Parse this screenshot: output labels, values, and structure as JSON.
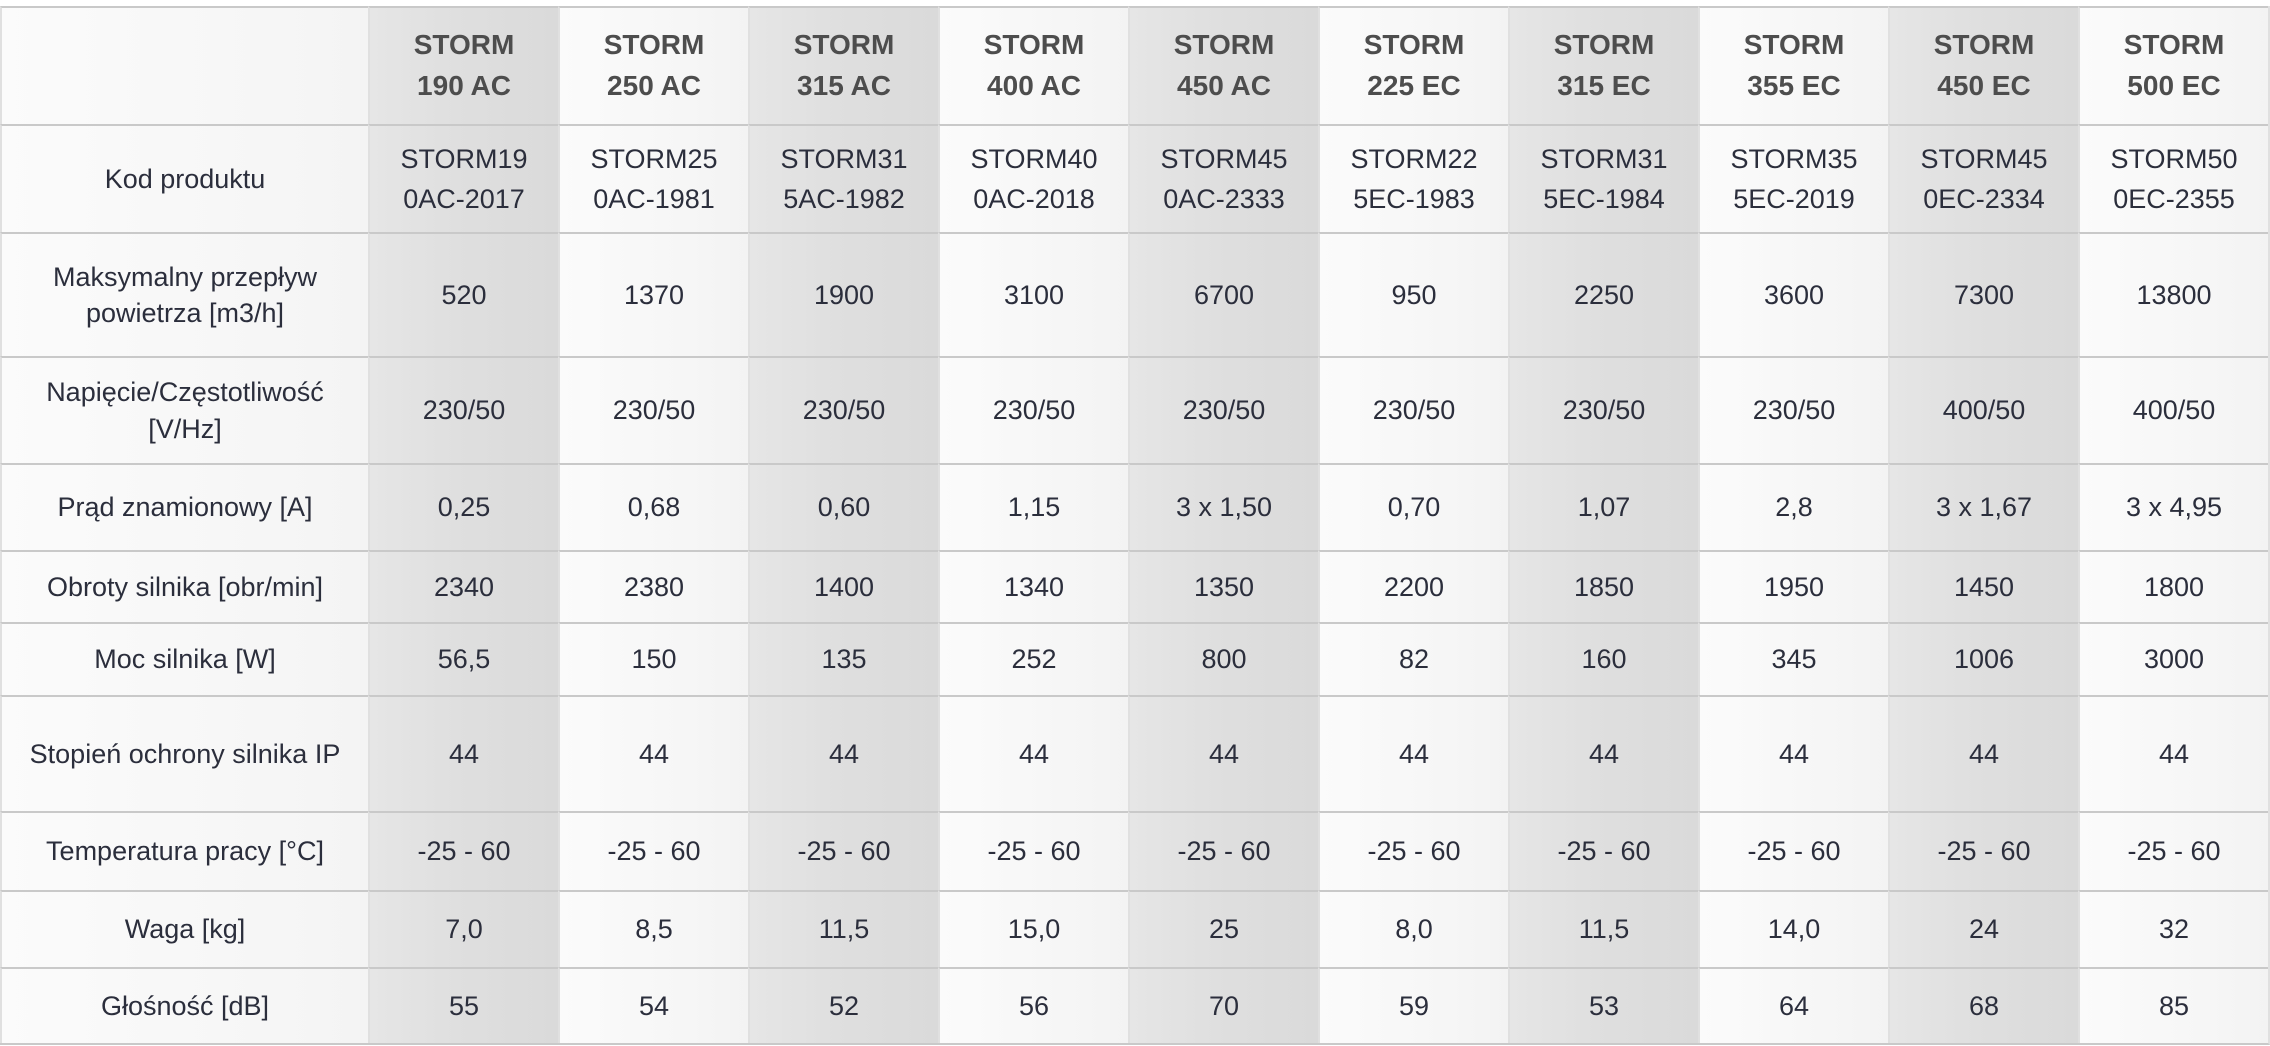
{
  "table": {
    "colors": {
      "stripe_gray": "#e0e0e0",
      "stripe_light": "#f8f8f8",
      "value_text": "#2b2e3c",
      "header_text": "#4d4d4d",
      "row_line": "#c9c9c9",
      "column_line": "#e0e0e0"
    },
    "corner_label": "",
    "products": [
      "STORM 190 AC",
      "STORM 250 AC",
      "STORM 315 AC",
      "STORM 400 AC",
      "STORM 450 AC",
      "STORM 225 EC",
      "STORM 315 EC",
      "STORM 355 EC",
      "STORM 450 EC",
      "STORM 500 EC"
    ],
    "rows": [
      {
        "id": "kod-produktu",
        "label": "Kod produktu",
        "values": [
          "STORM190AC-2017",
          "STORM250AC-1981",
          "STORM315AC-1982",
          "STORM400AC-2018",
          "STORM450AC-2333",
          "STORM225EC-1983",
          "STORM315EC-1984",
          "STORM355EC-2019",
          "STORM450EC-2334",
          "STORM500EC-2355"
        ]
      },
      {
        "id": "maksymalny-przeplyw-powietrza",
        "label": "Maksymalny przepływ powietrza [m3/h]",
        "values": [
          "520",
          "1370",
          "1900",
          "3100",
          "6700",
          "950",
          "2250",
          "3600",
          "7300",
          "13800"
        ]
      },
      {
        "id": "napiecie-czestotliwosc",
        "label": "Napięcie/Częstotliwość [V/Hz]",
        "values": [
          "230/50",
          "230/50",
          "230/50",
          "230/50",
          "230/50",
          "230/50",
          "230/50",
          "230/50",
          "400/50",
          "400/50"
        ]
      },
      {
        "id": "prad-znamionowy",
        "label": "Prąd znamionowy [A]",
        "values": [
          "0,25",
          "0,68",
          "0,60",
          "1,15",
          "3 x 1,50",
          "0,70",
          "1,07",
          "2,8",
          "3 x 1,67",
          "3 x 4,95"
        ]
      },
      {
        "id": "obroty-silnika",
        "label": "Obroty silnika [obr/min]",
        "values": [
          "2340",
          "2380",
          "1400",
          "1340",
          "1350",
          "2200",
          "1850",
          "1950",
          "1450",
          "1800"
        ]
      },
      {
        "id": "moc-silnika",
        "label": "Moc silnika [W]",
        "values": [
          "56,5",
          "150",
          "135",
          "252",
          "800",
          "82",
          "160",
          "345",
          "1006",
          "3000"
        ]
      },
      {
        "id": "stopien-ochrony-silnika-ip",
        "label": "Stopień ochrony silnika IP",
        "values": [
          "44",
          "44",
          "44",
          "44",
          "44",
          "44",
          "44",
          "44",
          "44",
          "44"
        ]
      },
      {
        "id": "temperatura-pracy",
        "label": "Temperatura pracy [°C]",
        "values": [
          "-25 - 60",
          "-25 - 60",
          "-25 - 60",
          "-25 - 60",
          "-25 - 60",
          "-25 - 60",
          "-25 - 60",
          "-25 - 60",
          "-25 - 60",
          "-25 - 60"
        ]
      },
      {
        "id": "waga",
        "label": "Waga [kg]",
        "values": [
          "7,0",
          "8,5",
          "11,5",
          "15,0",
          "25",
          "8,0",
          "11,5",
          "14,0",
          "24",
          "32"
        ]
      },
      {
        "id": "glosnosc",
        "label": "Głośność [dB]",
        "values": [
          "55",
          "54",
          "52",
          "56",
          "70",
          "59",
          "53",
          "64",
          "68",
          "85"
        ]
      }
    ]
  }
}
